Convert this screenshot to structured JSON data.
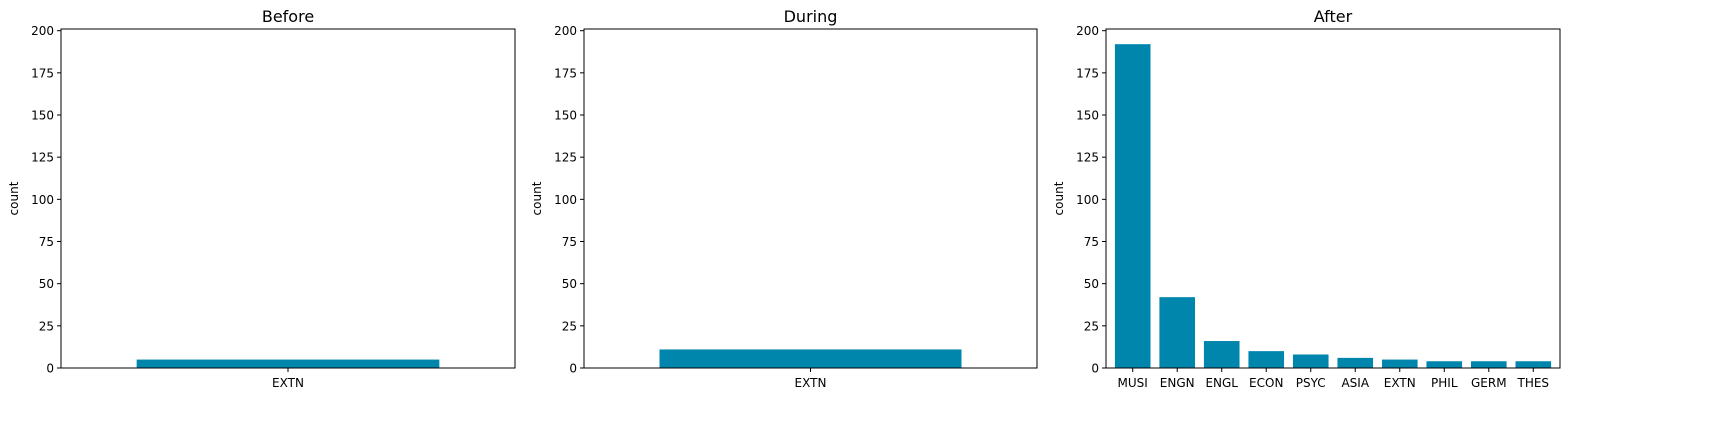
{
  "chart_data": [
    {
      "type": "bar",
      "title": "Before",
      "xlabel": "",
      "ylabel": "count",
      "categories": [
        "EXTN"
      ],
      "values": [
        5
      ],
      "ylim": [
        0,
        201
      ],
      "yticks": [
        0,
        25,
        50,
        75,
        100,
        125,
        150,
        175,
        200
      ],
      "color": "#0086ad",
      "grid": false
    },
    {
      "type": "bar",
      "title": "During",
      "xlabel": "",
      "ylabel": "count",
      "categories": [
        "EXTN"
      ],
      "values": [
        11
      ],
      "ylim": [
        0,
        201
      ],
      "yticks": [
        0,
        25,
        50,
        75,
        100,
        125,
        150,
        175,
        200
      ],
      "color": "#0086ad",
      "grid": false
    },
    {
      "type": "bar",
      "title": "After",
      "xlabel": "",
      "ylabel": "count",
      "categories": [
        "MUSI",
        "ENGN",
        "ENGL",
        "ECON",
        "PSYC",
        "ASIA",
        "EXTN",
        "PHIL",
        "GERM",
        "THES"
      ],
      "values": [
        192,
        42,
        16,
        10,
        8,
        6,
        5,
        4,
        4,
        4
      ],
      "ylim": [
        0,
        201
      ],
      "yticks": [
        0,
        25,
        50,
        75,
        100,
        125,
        150,
        175,
        200
      ],
      "color": "#0086ad",
      "grid": false
    }
  ]
}
